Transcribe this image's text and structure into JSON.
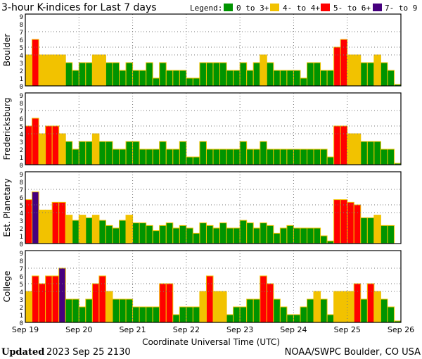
{
  "title": "3-hour K-indices for Last 7 days",
  "legend": {
    "label": "Legend:",
    "items": [
      {
        "label": "0 to 3+",
        "color": "#009400"
      },
      {
        "label": "4- to 4+",
        "color": "#f2c200"
      },
      {
        "label": "5- to 6+",
        "color": "#ff0000"
      },
      {
        "label": "7- to 9",
        "color": "#46007e"
      }
    ]
  },
  "footer": {
    "updated_label": "Updated",
    "updated_value": "2023 Sep 25 2130",
    "source": "NOAA/SWPC Boulder, CO USA"
  },
  "chart_data": {
    "type": "bar",
    "xlabel": "Coordinate Universal Time (UTC)",
    "x_tick_labels": [
      "Sep 19",
      "Sep 20",
      "Sep 21",
      "Sep 22",
      "Sep 23",
      "Sep 24",
      "Sep 25",
      "Sep 26"
    ],
    "y_tick_labels": [
      "0",
      "1",
      "2",
      "3",
      "4",
      "5",
      "6",
      "7",
      "8",
      "9"
    ],
    "ylim": [
      0,
      9
    ],
    "interval_hours": 3,
    "grid": "dotted at 4, 5, 7 and at day boundaries",
    "panels": [
      {
        "name": "Boulder",
        "values": [
          4,
          6,
          4,
          4,
          4,
          4,
          3,
          2,
          3,
          3,
          4,
          4,
          3,
          3,
          2,
          3,
          2,
          2,
          3,
          1,
          3,
          2,
          2,
          2,
          1,
          1,
          3,
          3,
          3,
          3,
          2,
          2,
          3,
          2,
          3,
          4,
          3,
          2,
          2,
          2,
          2,
          1,
          3,
          3,
          2,
          2,
          5,
          6,
          4,
          4,
          3,
          3,
          4,
          3,
          2,
          0
        ]
      },
      {
        "name": "Fredericksburg",
        "values": [
          5,
          6,
          4,
          5,
          5,
          4,
          3,
          2,
          3,
          3,
          4,
          3,
          3,
          2,
          2,
          3,
          3,
          2,
          2,
          2,
          3,
          2,
          2,
          3,
          1,
          1,
          3,
          2,
          2,
          2,
          2,
          2,
          3,
          2,
          2,
          3,
          2,
          2,
          2,
          2,
          2,
          2,
          2,
          2,
          2,
          1,
          5,
          5,
          4,
          4,
          3,
          3,
          3,
          2,
          2,
          0
        ]
      },
      {
        "name": "Est. Planetary",
        "values": [
          5.67,
          6.67,
          4.33,
          4.33,
          5.33,
          5.33,
          3.67,
          3,
          3.67,
          3.33,
          3.67,
          3,
          2.33,
          2,
          3,
          3.67,
          2.67,
          2.67,
          2.33,
          1.67,
          2.33,
          2.67,
          2,
          2.33,
          2,
          1.33,
          2.67,
          2.33,
          2,
          2.67,
          2,
          2,
          3,
          2.67,
          2,
          2.67,
          2.33,
          1.33,
          2,
          2.33,
          2,
          2,
          2,
          2,
          1,
          0.33,
          5.67,
          5.67,
          5.33,
          5,
          3.33,
          3.33,
          3.67,
          2.33,
          2.33,
          null
        ]
      },
      {
        "name": "College",
        "values": [
          4,
          6,
          5,
          6,
          6,
          7,
          3,
          3,
          2,
          3,
          5,
          6,
          4,
          3,
          3,
          3,
          2,
          2,
          2,
          2,
          5,
          5,
          1,
          2,
          2,
          2,
          4,
          6,
          4,
          4,
          1,
          2,
          2,
          3,
          3,
          6,
          5,
          3,
          2,
          1,
          1,
          2,
          3,
          4,
          3,
          1,
          4,
          4,
          4,
          5,
          3,
          5,
          4,
          3,
          2,
          0
        ]
      }
    ]
  }
}
